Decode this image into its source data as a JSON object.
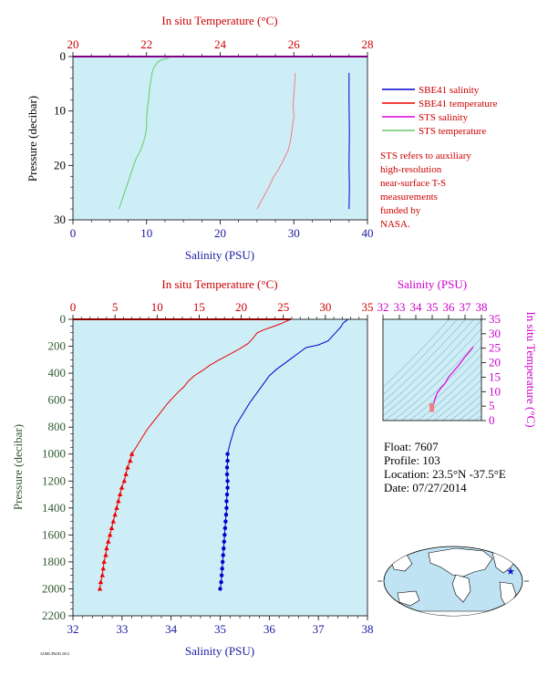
{
  "colors": {
    "plot_bg": "#cdeef7",
    "salinity": "#0000cc",
    "temperature": "#ee0000",
    "sts_salinity": "#dd00dd",
    "sts_temperature": "#66cc66",
    "sts_temp_trace": "#f08080",
    "red_axis": "#cc0000",
    "blue_axis": "#1a1aa0",
    "green_axis": "#2e5a2e",
    "magenta_axis": "#cc00cc"
  },
  "chart_data": [
    {
      "id": "surface",
      "type": "line",
      "top_axis_label": "In situ Temperature (°C)",
      "top_ticks": [
        "20",
        "22",
        "24",
        "26",
        "28"
      ],
      "top_range": [
        20,
        28
      ],
      "xlabel": "Salinity (PSU)",
      "x_ticks": [
        "0",
        "10",
        "20",
        "30",
        "40"
      ],
      "xlim": [
        0,
        40
      ],
      "ylabel": "Pressure (decibar)",
      "y_ticks": [
        "0",
        "10",
        "20",
        "30"
      ],
      "ylim": [
        0,
        30
      ],
      "series": [
        {
          "name": "SBE41 salinity",
          "color": "#0000cc",
          "axis": "bottom",
          "points": [
            [
              37.5,
              3
            ],
            [
              37.5,
              8
            ],
            [
              37.55,
              14
            ],
            [
              37.5,
              20
            ],
            [
              37.55,
              24
            ],
            [
              37.5,
              28
            ]
          ]
        },
        {
          "name": "SBE41 temperature",
          "color": "#ee0000",
          "axis": "top",
          "points": [
            [
              20,
              0
            ],
            [
              28,
              0
            ]
          ]
        },
        {
          "name": "STS salinity",
          "color": "#dd00dd",
          "axis": "bottom",
          "points": [
            [
              0,
              0
            ],
            [
              40,
              0
            ]
          ]
        },
        {
          "name": "STS temperature",
          "color": "#66cc66",
          "axis": "top",
          "points": [
            [
              22.6,
              0.3
            ],
            [
              22.4,
              0.6
            ],
            [
              22.3,
              1
            ],
            [
              22.2,
              2
            ],
            [
              22.15,
              3
            ],
            [
              22.1,
              5
            ],
            [
              22.05,
              8
            ],
            [
              22.0,
              11
            ],
            [
              22.0,
              13
            ],
            [
              21.95,
              15
            ],
            [
              21.85,
              17
            ],
            [
              21.7,
              19
            ],
            [
              21.6,
              21
            ],
            [
              21.5,
              23
            ],
            [
              21.4,
              25
            ],
            [
              21.3,
              27
            ],
            [
              21.25,
              28
            ]
          ]
        },
        {
          "name": "",
          "color": "#f08080",
          "axis": "bottom",
          "points": [
            [
              30.2,
              3
            ],
            [
              30.1,
              5
            ],
            [
              30.0,
              7
            ],
            [
              29.9,
              9
            ],
            [
              30.0,
              11
            ],
            [
              29.8,
              13
            ],
            [
              29.6,
              15
            ],
            [
              29.3,
              17
            ],
            [
              28.6,
              19
            ],
            [
              27.8,
              21
            ],
            [
              27.3,
              22
            ],
            [
              26.6,
              24
            ],
            [
              25.8,
              26
            ],
            [
              25.0,
              28
            ]
          ]
        }
      ],
      "legend": [
        "SBE41 salinity",
        "SBE41 temperature",
        "STS salinity",
        "STS temperature"
      ],
      "legend_position": "right",
      "note": "STS refers to auxiliary high-resolution near-surface T-S measurements funded by NASA."
    },
    {
      "id": "profile",
      "type": "line",
      "top_axis_label": "In situ Temperature (°C)",
      "top_ticks": [
        "0",
        "5",
        "10",
        "15",
        "20",
        "25",
        "30",
        "35"
      ],
      "top_range": [
        0,
        35
      ],
      "xlabel": "Salinity (PSU)",
      "x_ticks": [
        "32",
        "33",
        "34",
        "35",
        "36",
        "37",
        "38"
      ],
      "xlim": [
        32,
        38
      ],
      "ylabel": "Pressure (decibar)",
      "y_ticks": [
        "0",
        "200",
        "400",
        "600",
        "800",
        "1000",
        "1200",
        "1400",
        "1600",
        "1800",
        "2000",
        "2200"
      ],
      "ylim": [
        0,
        2200
      ],
      "temperature": [
        [
          25.9,
          0
        ],
        [
          25.5,
          10
        ],
        [
          25.0,
          25
        ],
        [
          24.4,
          40
        ],
        [
          23.5,
          60
        ],
        [
          22.6,
          80
        ],
        [
          21.9,
          100
        ],
        [
          21.4,
          140
        ],
        [
          20.8,
          180
        ],
        [
          19.8,
          220
        ],
        [
          18.6,
          260
        ],
        [
          17.4,
          300
        ],
        [
          16.3,
          340
        ],
        [
          15.4,
          380
        ],
        [
          14.4,
          420
        ],
        [
          13.7,
          460
        ],
        [
          13.2,
          500
        ],
        [
          12.5,
          540
        ],
        [
          11.9,
          580
        ],
        [
          11.3,
          620
        ],
        [
          10.8,
          660
        ],
        [
          10.3,
          700
        ],
        [
          9.8,
          740
        ],
        [
          9.3,
          780
        ],
        [
          8.8,
          820
        ],
        [
          8.4,
          860
        ],
        [
          8.0,
          900
        ],
        [
          7.6,
          940
        ],
        [
          7.2,
          980
        ],
        [
          7.0,
          1000
        ],
        [
          6.8,
          1050
        ],
        [
          6.5,
          1100
        ],
        [
          6.3,
          1150
        ],
        [
          6.1,
          1200
        ],
        [
          5.8,
          1250
        ],
        [
          5.6,
          1300
        ],
        [
          5.4,
          1350
        ],
        [
          5.2,
          1400
        ],
        [
          5.0,
          1450
        ],
        [
          4.8,
          1500
        ],
        [
          4.6,
          1550
        ],
        [
          4.4,
          1600
        ],
        [
          4.2,
          1650
        ],
        [
          4.0,
          1700
        ],
        [
          3.9,
          1750
        ],
        [
          3.7,
          1800
        ],
        [
          3.6,
          1850
        ],
        [
          3.5,
          1900
        ],
        [
          3.3,
          1950
        ],
        [
          3.2,
          2000
        ]
      ],
      "salinity": [
        [
          37.6,
          0
        ],
        [
          37.55,
          15
        ],
        [
          37.5,
          30
        ],
        [
          37.45,
          60
        ],
        [
          37.4,
          80
        ],
        [
          37.3,
          120
        ],
        [
          37.2,
          160
        ],
        [
          37.0,
          190
        ],
        [
          36.75,
          210
        ],
        [
          36.6,
          250
        ],
        [
          36.45,
          290
        ],
        [
          36.3,
          330
        ],
        [
          36.15,
          370
        ],
        [
          36.0,
          420
        ],
        [
          35.9,
          470
        ],
        [
          35.8,
          520
        ],
        [
          35.7,
          570
        ],
        [
          35.6,
          620
        ],
        [
          35.5,
          680
        ],
        [
          35.4,
          740
        ],
        [
          35.3,
          800
        ],
        [
          35.25,
          860
        ],
        [
          35.2,
          920
        ],
        [
          35.15,
          1000
        ],
        [
          35.15,
          1050
        ],
        [
          35.14,
          1100
        ],
        [
          35.14,
          1150
        ],
        [
          35.15,
          1200
        ],
        [
          35.15,
          1250
        ],
        [
          35.14,
          1300
        ],
        [
          35.13,
          1350
        ],
        [
          35.13,
          1400
        ],
        [
          35.12,
          1450
        ],
        [
          35.11,
          1500
        ],
        [
          35.1,
          1550
        ],
        [
          35.09,
          1600
        ],
        [
          35.08,
          1650
        ],
        [
          35.07,
          1700
        ],
        [
          35.06,
          1750
        ],
        [
          35.05,
          1800
        ],
        [
          35.04,
          1850
        ],
        [
          35.03,
          1900
        ],
        [
          35.02,
          1950
        ],
        [
          35.0,
          2000
        ]
      ],
      "markers_from_pressure": 1000
    },
    {
      "id": "ts-diagram",
      "type": "line",
      "top_axis_label": "Salinity (PSU)",
      "top_ticks": [
        "32",
        "33",
        "34",
        "35",
        "36",
        "37",
        "38"
      ],
      "top_range": [
        32,
        38
      ],
      "ylabel": "In situ Temperature (°C)",
      "y_ticks": [
        "0",
        "5",
        "10",
        "15",
        "20",
        "25",
        "30",
        "35"
      ],
      "ylim": [
        0,
        35
      ],
      "series": [
        {
          "name": "",
          "color": "#dd00dd",
          "points": [
            [
              35.0,
              3
            ],
            [
              35.02,
              4
            ],
            [
              35.05,
              5
            ],
            [
              35.1,
              6
            ],
            [
              35.15,
              7
            ],
            [
              35.2,
              8
            ],
            [
              35.3,
              9.5
            ],
            [
              35.5,
              11
            ],
            [
              35.8,
              13
            ],
            [
              36.0,
              15
            ],
            [
              36.3,
              17
            ],
            [
              36.6,
              19
            ],
            [
              37.0,
              22
            ],
            [
              37.3,
              24
            ],
            [
              37.5,
              25.5
            ]
          ]
        }
      ]
    }
  ],
  "float_info": {
    "float": "Float: 7607",
    "profile": "Profile: 103",
    "location": "Location: 23.5°N -37.5°E",
    "date": "Date: 07/27/2014"
  },
  "footer_text": "AOML/PhOD 2014"
}
